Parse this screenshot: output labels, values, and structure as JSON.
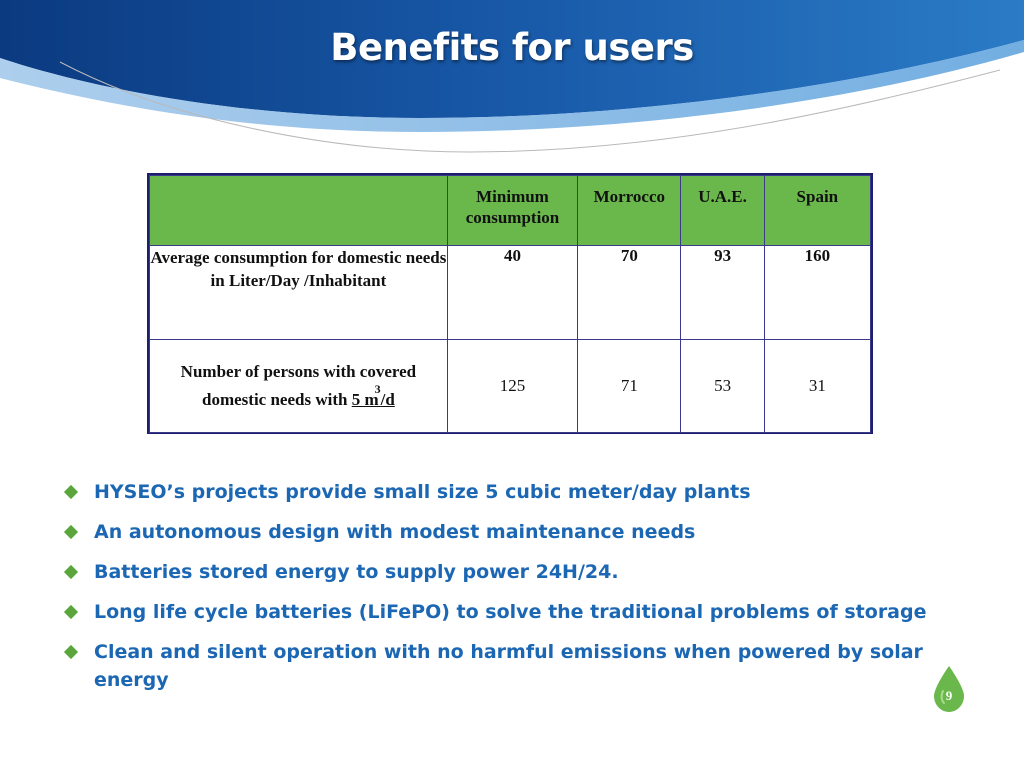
{
  "slide": {
    "title": "Benefits for users",
    "page_number": "9"
  },
  "table": {
    "headers": [
      "",
      "Minimum consumption",
      "Morrocco",
      "U.A.E.",
      "Spain"
    ],
    "rows": [
      {
        "label": "Average consumption for domestic needs in Liter/Day /Inhabitant",
        "values": [
          "40",
          "70",
          "93",
          "160"
        ]
      },
      {
        "label_text": "Number of persons with covered domestic needs with",
        "label_unit": "5 m",
        "label_sup": "3",
        "label_suffix": "/d",
        "values": [
          "125",
          "71",
          "53",
          "31"
        ]
      }
    ]
  },
  "bullets": [
    "HYSEO’s projects provide small size 5 cubic meter/day plants",
    "An autonomous design with modest maintenance needs",
    "Batteries stored energy to supply power 24H/24.",
    "Long life cycle batteries (LiFePO) to solve the traditional problems of  storage",
    "Clean and silent operation with no harmful emissions when powered by solar energy"
  ],
  "colors": {
    "header_blue_dark": "#0d3f86",
    "header_blue_light": "#2e7fc9",
    "table_header_green": "#6ab84b",
    "table_border": "#1d1f6e",
    "bullet_text": "#1c67b4",
    "bullet_mark": "#5aa63c",
    "page_drop": "#6ab84b"
  }
}
